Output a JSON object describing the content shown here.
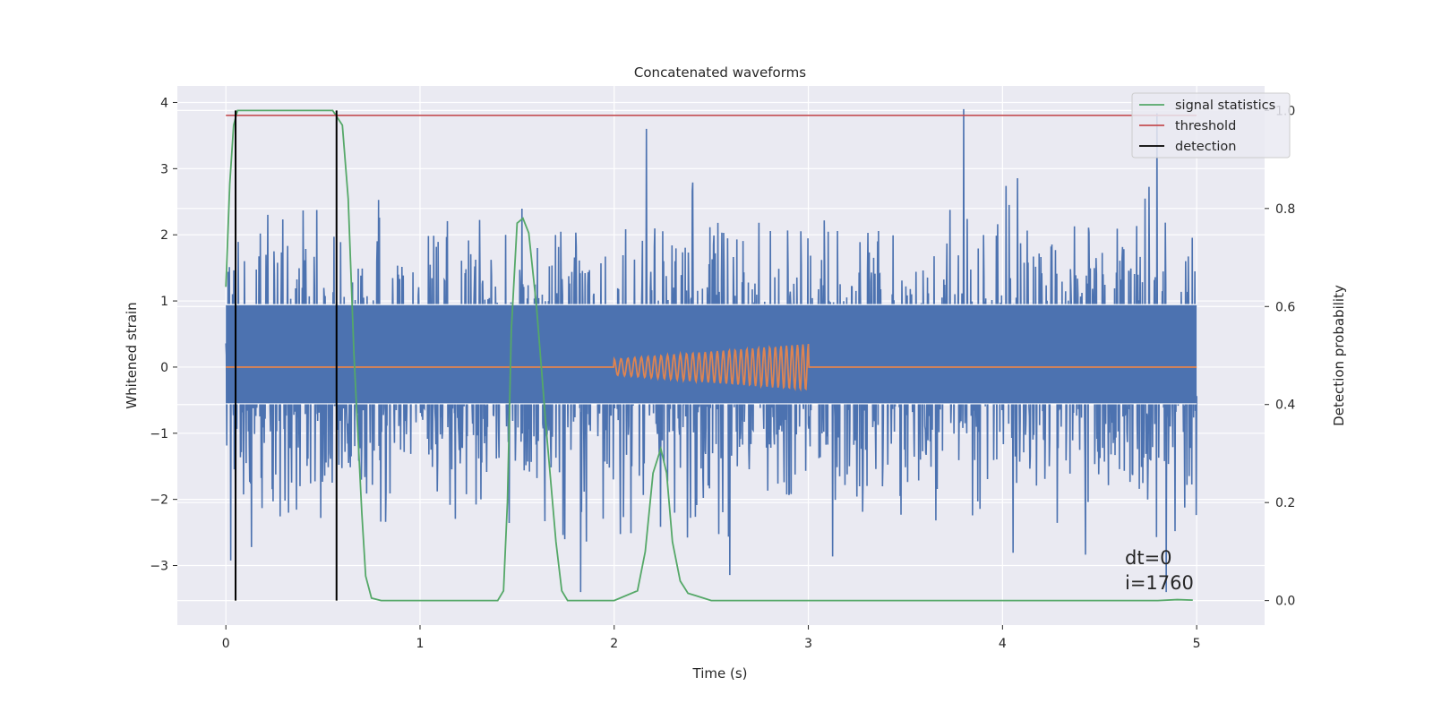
{
  "chart_data": {
    "type": "line",
    "title": "Concatenated waveforms",
    "xlabel": "Time (s)",
    "ylabel": "Whitened strain",
    "y2label": "Detection probability",
    "xlim": [
      -0.25,
      5.35
    ],
    "ylim": [
      -3.9,
      4.25
    ],
    "y2lim": [
      -0.05,
      1.05
    ],
    "x_ticks": [
      0,
      1,
      2,
      3,
      4,
      5
    ],
    "y_ticks": [
      -3,
      -2,
      -1,
      0,
      1,
      2,
      3,
      4
    ],
    "y2_ticks": [
      0.0,
      0.2,
      0.4,
      0.6,
      0.8,
      1.0
    ],
    "x_tick_labels": [
      "0",
      "1",
      "2",
      "3",
      "4",
      "5"
    ],
    "y_tick_labels": [
      "−3",
      "−2",
      "−1",
      "0",
      "1",
      "2",
      "3",
      "4"
    ],
    "y2_tick_labels": [
      "0.0",
      "0.2",
      "0.4",
      "0.6",
      "0.8",
      "1.0"
    ],
    "grid": true,
    "legend_position": "top-right",
    "legend": [
      "signal statistics",
      "threshold",
      "detection"
    ],
    "colors": {
      "strain": "#4c72b0",
      "injected_signal": "#dd8452",
      "signal_statistics": "#55a868",
      "threshold": "#c44e52",
      "detection": "#000000",
      "axes_bg": "#eaeaf2",
      "grid": "#ffffff"
    },
    "series": [
      {
        "axis": "left",
        "description": "noisy whitened strain, approx. zero-mean, std ~1, extremes ~±3.9",
        "x_range": [
          0,
          5
        ],
        "mean": 0,
        "std": 1.0,
        "min": -3.4,
        "max": 3.9
      },
      {
        "axis": "left",
        "description": "injected chirp",
        "x_range": [
          0,
          5
        ],
        "chirp_start": 2.0,
        "chirp_end": 3.0,
        "amplitude_start": 0.12,
        "amplitude_end": 0.35,
        "freq_start": 28,
        "freq_end": 36
      },
      {
        "name": "signal statistics",
        "axis": "right",
        "x": [
          0,
          0.02,
          0.04,
          0.06,
          0.1,
          0.2,
          0.4,
          0.55,
          0.6,
          0.63,
          0.66,
          0.7,
          0.72,
          0.75,
          0.8,
          1.0,
          1.2,
          1.4,
          1.43,
          1.45,
          1.47,
          1.5,
          1.53,
          1.56,
          1.6,
          1.65,
          1.7,
          1.73,
          1.76,
          1.8,
          2.0,
          2.12,
          2.16,
          2.2,
          2.24,
          2.27,
          2.3,
          2.34,
          2.38,
          2.42,
          2.46,
          2.5,
          2.6,
          3.0,
          4.0,
          4.8,
          4.9,
          4.98
        ],
        "y": [
          0.64,
          0.85,
          0.97,
          1.0,
          1.0,
          1.0,
          1.0,
          1.0,
          0.97,
          0.82,
          0.5,
          0.18,
          0.05,
          0.005,
          0.0,
          0.0,
          0.0,
          0.0,
          0.02,
          0.2,
          0.55,
          0.77,
          0.78,
          0.75,
          0.6,
          0.35,
          0.12,
          0.02,
          0.0,
          0.0,
          0.0,
          0.02,
          0.1,
          0.26,
          0.31,
          0.26,
          0.12,
          0.04,
          0.015,
          0.01,
          0.005,
          0.0,
          0.0,
          0.0,
          0.0,
          0.0,
          0.002,
          0.001
        ]
      },
      {
        "name": "threshold",
        "axis": "right",
        "x": [
          0,
          5
        ],
        "y": [
          0.99,
          0.99
        ]
      },
      {
        "name": "detection",
        "axis": "right",
        "x": [
          0.05,
          0.57
        ],
        "y_range": [
          0.0,
          1.0
        ]
      }
    ],
    "annotation_lines": [
      "dt=0",
      "i=1760"
    ],
    "horizontal_bands_y": [
      0.945,
      -0.555
    ]
  }
}
